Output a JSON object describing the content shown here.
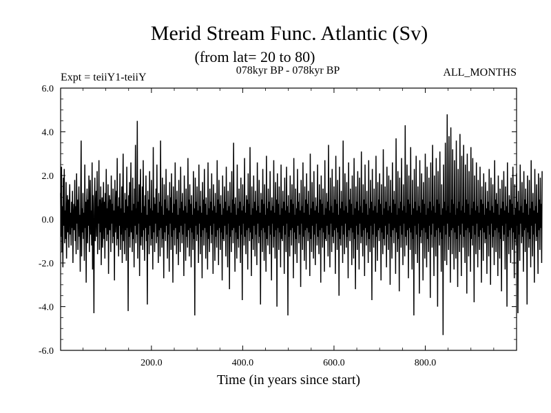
{
  "chart_data": {
    "type": "line",
    "title": "Merid Stream Func. Atlantic (Sv)",
    "subtitle": "(from lat= 20 to 80)",
    "header_left": "Expt = teiiY1-teiiY",
    "header_center": "078kyr BP - 078kyr BP",
    "header_right": "ALL_MONTHS",
    "xlabel": "Time (in years since start)",
    "ylabel": "",
    "xlim": [
      1,
      1000
    ],
    "ylim": [
      -6.0,
      6.0
    ],
    "x_ticks": [
      200,
      400,
      600,
      800
    ],
    "x_tick_labels": [
      "200.0",
      "400.0",
      "600.0",
      "800.0"
    ],
    "y_ticks": [
      -6,
      -4,
      -2,
      0,
      2,
      4,
      6
    ],
    "y_tick_labels": [
      "-6.0",
      "-4.0",
      "-2.0",
      "0.0",
      "2.0",
      "4.0",
      "6.0"
    ],
    "zero_line": true,
    "series": [
      {
        "x_start": 1,
        "x_step": 1,
        "color": "#000000",
        "values": [
          1.2,
          -0.8,
          2.4,
          -1.5,
          0.6,
          -2.2,
          1.9,
          -0.3,
          2.3,
          -1.1,
          0.4,
          -0.9,
          1.7,
          -1.8,
          0.2,
          1.1,
          -0.6,
          0.9,
          -1.3,
          0.5,
          1.6,
          -0.7,
          0.3,
          -1.2,
          0.8,
          -0.4,
          1.3,
          -2.0,
          0.1,
          0.7,
          -0.5,
          1.8,
          -1.0,
          0.6,
          -1.6,
          2.1,
          -0.2,
          0.9,
          -1.4,
          0.4,
          1.5,
          -0.8,
          0.2,
          -2.4,
          1.0,
          3.6,
          -1.7,
          0.5,
          -0.6,
          1.2,
          -0.9,
          0.3,
          -1.9,
          2.5,
          -0.4,
          0.8,
          -2.9,
          0.6,
          1.4,
          -1.1,
          0.9,
          -0.3,
          2.0,
          -1.5,
          0.2,
          1.8,
          -0.7,
          0.4,
          -1.2,
          2.6,
          -2.3,
          1.1,
          -0.5,
          -4.3,
          0.7,
          1.9,
          -1.0,
          0.3,
          1.3,
          -0.8,
          2.2,
          -1.6,
          0.6,
          -0.2,
          2.7,
          -1.4,
          0.9,
          -0.6,
          1.5,
          -2.1,
          0.4,
          1.0,
          -1.3,
          0.2,
          1.7,
          -0.9,
          0.8,
          -1.8,
          1.2,
          -0.4,
          2.3,
          -1.0,
          0.5,
          -0.7,
          1.6,
          -2.5,
          0.3,
          1.1,
          -0.5,
          0.9,
          -1.5,
          2.0,
          -0.2,
          0.7,
          -1.1,
          1.4,
          -0.8,
          0.4,
          -2.8,
          1.8,
          -0.6,
          0.2,
          1.3,
          -1.2,
          2.8,
          -0.9,
          0.6,
          -1.7,
          1.0,
          -0.3,
          2.1,
          -1.4,
          0.5,
          -0.7,
          1.5,
          -2.0,
          0.8,
          3.0,
          -1.0,
          0.3,
          -1.6,
          1.2,
          -0.5,
          0.9,
          -1.9,
          2.4,
          -0.4,
          0.6,
          -4.2,
          1.1,
          -0.8,
          1.7,
          -1.3,
          0.2,
          2.6,
          -0.6,
          0.4,
          -1.5,
          1.9,
          -0.9,
          0.7,
          -2.2,
          1.4,
          -0.3,
          3.4,
          -1.1,
          0.5,
          -0.7,
          4.5,
          -1.8,
          0.8,
          -0.2,
          1.6,
          -2.6,
          0.9,
          2.3,
          -1.2,
          0.3,
          -0.8,
          1.5,
          -1.4,
          2.7,
          -0.5,
          0.6,
          -1.9,
          1.1,
          -0.4,
          2.0,
          -1.0,
          0.2,
          -3.9,
          1.3,
          -0.7,
          0.9,
          -1.6,
          2.2,
          -0.3,
          0.5,
          -1.2,
          1.8,
          -0.9,
          0.4,
          -2.3,
          3.3,
          -0.6,
          1.0,
          -1.5,
          0.7,
          -0.2,
          1.4,
          -1.1,
          2.5,
          -0.8,
          0.3,
          -2.0,
          1.2,
          -0.5,
          0.8,
          -1.7,
          3.6,
          -0.4,
          0.6,
          -1.3,
          1.9,
          -0.9,
          0.2,
          -2.7,
          1.6,
          -0.6,
          0.9,
          -1.0,
          2.3,
          -0.3,
          0.5,
          -1.8,
          1.1,
          -0.7,
          0.4,
          -2.4,
          1.7,
          -0.2,
          1.0,
          -1.4,
          2.1,
          -0.8,
          0.3,
          -2.9,
          1.5,
          -0.5,
          0.7,
          -1.2,
          2.6,
          -0.4,
          0.9,
          -1.6,
          1.3,
          -0.9,
          0.2,
          -2.1,
          1.8,
          -0.6,
          0.5,
          -1.5,
          2.4,
          -0.3,
          0.8,
          -1.1,
          1.2,
          -0.7,
          0.4,
          -2.6,
          2.0,
          -0.2,
          0.6,
          -1.9,
          1.4,
          -0.8,
          0.3,
          -1.3,
          2.8,
          -0.5,
          0.9,
          -1.7,
          1.6,
          -0.4,
          0.7,
          -2.2,
          1.1,
          -0.6,
          0.2,
          -1.4,
          2.2,
          -0.9,
          0.5,
          -4.4,
          1.9,
          -0.3,
          0.8,
          -1.0,
          1.5,
          -0.7,
          0.4,
          -2.0,
          2.5,
          -0.2,
          0.6,
          -1.6,
          1.3,
          -0.8,
          0.3,
          -2.7,
          1.7,
          -0.5,
          0.9,
          -1.2,
          2.3,
          -0.4,
          0.7,
          -1.8,
          1.0,
          -0.6,
          0.2,
          -2.3,
          2.6,
          -0.9,
          0.5,
          -1.5,
          1.4,
          -0.3,
          0.8,
          -1.1,
          2.1,
          -0.7,
          0.4,
          -2.5,
          1.6,
          -0.2,
          0.6,
          -1.9,
          1.2,
          -0.8,
          0.3,
          -1.3,
          2.7,
          -0.5,
          0.9,
          -2.1,
          1.8,
          -0.4,
          0.7,
          -1.4,
          1.1,
          -0.6,
          0.2,
          -2.8,
          2.0,
          -0.9,
          0.5,
          -1.0,
          1.5,
          -0.3,
          0.8,
          -1.7,
          2.4,
          -0.7,
          0.4,
          -2.2,
          1.3,
          -0.2,
          0.6,
          -3.2,
          1.7,
          -0.8,
          0.3,
          -1.5,
          2.2,
          -0.5,
          0.9,
          -1.1,
          3.5,
          -0.4,
          0.7,
          -2.4,
          1.0,
          -0.6,
          0.2,
          -1.8,
          2.5,
          -0.9,
          0.5,
          -1.3,
          1.4,
          -0.3,
          0.8,
          -2.0,
          1.9,
          -0.7,
          0.4,
          -3.7,
          1.6,
          -0.2,
          0.6,
          -1.2,
          2.8,
          -0.8,
          0.3,
          -1.6,
          1.1,
          -0.5,
          0.9,
          -2.3,
          2.1,
          -0.4,
          0.7,
          -1.0,
          3.3,
          -0.6,
          0.2,
          -2.6,
          1.5,
          -0.9,
          0.5,
          -1.4,
          2.0,
          -0.3,
          0.8,
          -1.7,
          1.3,
          -0.7,
          0.4,
          -2.1,
          2.6,
          -0.2,
          0.6,
          -1.1,
          1.8,
          -0.8,
          0.3,
          -3.9,
          1.2,
          -0.5,
          0.9,
          -1.5,
          2.3,
          -0.4,
          0.7,
          -1.9,
          1.6,
          -0.6,
          0.2,
          -2.4,
          2.9,
          -0.9,
          0.5,
          -1.2,
          1.4,
          -0.3,
          0.8,
          -1.6,
          2.2,
          -0.7,
          0.4,
          -2.8,
          1.0,
          -0.2,
          0.6,
          -1.3,
          2.7,
          -0.8,
          0.3,
          -1.8,
          1.7,
          -0.5,
          0.9,
          -4.0,
          2.1,
          -0.4,
          0.7,
          -1.4,
          1.5,
          -0.6,
          0.2,
          -2.2,
          2.5,
          -0.9,
          0.5,
          -1.0,
          1.3,
          -0.3,
          0.8,
          -2.5,
          1.9,
          -0.7,
          0.4,
          -1.5,
          2.4,
          -0.2,
          0.6,
          -4.4,
          1.1,
          -0.8,
          0.3,
          -1.7,
          2.0,
          -0.5,
          0.9,
          -1.2,
          1.6,
          -0.4,
          0.7,
          -2.7,
          2.8,
          -0.6,
          0.2,
          -1.6,
          1.4,
          -0.9,
          0.5,
          -2.0,
          2.3,
          -0.3,
          0.8,
          -1.1,
          1.2,
          -0.7,
          0.4,
          -3.1,
          1.8,
          -0.2,
          0.6,
          -1.4,
          2.6,
          -0.8,
          0.3,
          -1.9,
          1.5,
          -0.5,
          0.9,
          -2.3,
          2.1,
          -0.4,
          0.7,
          -1.0,
          1.3,
          -0.6,
          0.2,
          -2.6,
          3.0,
          -0.9,
          0.5,
          -1.5,
          1.7,
          -0.3,
          0.8,
          -1.8,
          2.2,
          -0.7,
          0.4,
          -2.1,
          1.0,
          -0.2,
          0.6,
          -1.2,
          2.5,
          -0.8,
          0.3,
          -1.6,
          1.6,
          -0.5,
          0.9,
          -2.9,
          2.0,
          -0.4,
          0.7,
          -1.3,
          1.4,
          -0.6,
          0.2,
          -2.4,
          2.7,
          -0.9,
          0.5,
          -1.0,
          1.2,
          -0.3,
          0.8,
          -1.7,
          3.4,
          -0.7,
          0.4,
          -2.2,
          1.9,
          -0.2,
          0.6,
          -1.5,
          2.3,
          -0.8,
          0.3,
          -1.1,
          1.5,
          -0.5,
          0.9,
          -2.5,
          2.9,
          -0.4,
          0.7,
          -1.4,
          1.8,
          -0.6,
          0.2,
          -3.5,
          2.4,
          -0.9,
          0.5,
          -1.2,
          1.3,
          -0.3,
          0.8,
          -2.0,
          3.6,
          -0.7,
          0.4,
          -1.6,
          2.1,
          -0.2,
          0.6,
          -1.3,
          1.7,
          -0.8,
          0.3,
          -2.7,
          2.6,
          -0.5,
          0.9,
          -1.0,
          1.4,
          -0.4,
          0.7,
          -2.1,
          2.0,
          -0.6,
          0.2,
          -1.8,
          2.8,
          -0.9,
          0.5,
          -3.2,
          1.5,
          -0.3,
          0.8,
          -1.4,
          2.2,
          -0.7,
          0.4,
          -2.3,
          1.9,
          -0.2,
          0.6,
          -1.1,
          3.1,
          -0.8,
          0.3,
          -1.7,
          1.6,
          -0.5,
          0.9,
          -2.6,
          2.5,
          -0.4,
          0.7,
          -1.2,
          1.3,
          -0.6,
          0.2,
          -2.0,
          2.7,
          -0.9,
          0.5,
          -1.5,
          1.8,
          -0.3,
          0.8,
          -3.7,
          2.3,
          -0.7,
          0.4,
          -1.3,
          1.4,
          -0.2,
          0.6,
          -2.4,
          2.9,
          -0.8,
          0.3,
          -1.9,
          1.7,
          -0.5,
          0.9,
          -1.0,
          2.1,
          -0.4,
          0.7,
          -2.8,
          1.6,
          -0.6,
          0.2,
          -1.6,
          3.2,
          -0.9,
          0.5,
          -1.2,
          1.5,
          -0.3,
          0.8,
          -2.2,
          2.4,
          -0.7,
          0.4,
          -1.4,
          2.0,
          -0.2,
          0.6,
          -3.0,
          1.8,
          -0.8,
          0.3,
          -1.8,
          2.6,
          -0.5,
          0.9,
          -1.1,
          1.3,
          -0.4,
          0.7,
          -2.5,
          3.7,
          -0.6,
          0.2,
          -1.5,
          2.2,
          -0.9,
          0.5,
          -3.3,
          1.9,
          -0.3,
          0.8,
          -1.3,
          2.8,
          -0.7,
          0.4,
          -2.1,
          1.6,
          -0.2,
          0.6,
          -1.7,
          4.3,
          -0.8,
          0.3,
          -1.2,
          2.5,
          -0.5,
          0.9,
          -2.7,
          2.0,
          -0.4,
          0.7,
          -1.4,
          3.3,
          -0.6,
          0.2,
          -2.3,
          1.8,
          -0.9,
          0.5,
          -4.4,
          2.3,
          -0.3,
          0.8,
          -1.6,
          2.9,
          -0.7,
          0.4,
          -2.0,
          1.5,
          -0.2,
          0.6,
          -3.4,
          2.7,
          -0.8,
          0.3,
          -1.1,
          2.1,
          -0.5,
          0.9,
          -2.8,
          1.7,
          -0.4,
          0.7,
          -1.8,
          3.0,
          -0.6,
          0.2,
          -2.2,
          2.4,
          -0.9,
          0.5,
          -1.5,
          1.9,
          -0.3,
          0.8,
          -3.6,
          2.6,
          -0.7,
          0.4,
          -1.3,
          3.4,
          -0.2,
          0.6,
          -2.6,
          2.0,
          -0.8,
          0.3,
          -1.7,
          2.8,
          -0.5,
          0.9,
          -4.0,
          2.2,
          -0.4,
          0.7,
          -1.2,
          3.1,
          -0.6,
          0.2,
          -2.4,
          1.6,
          -0.9,
          0.5,
          -5.3,
          2.5,
          -0.3,
          0.8,
          -1.9,
          3.5,
          -0.7,
          0.4,
          -2.1,
          4.8,
          -0.2,
          0.6,
          -1.4,
          3.8,
          -0.8,
          0.3,
          -2.9,
          4.2,
          -0.5,
          0.9,
          -1.6,
          3.2,
          -0.4,
          0.7,
          -2.3,
          2.7,
          -0.6,
          0.2,
          -1.8,
          3.6,
          -0.9,
          0.5,
          -3.1,
          2.3,
          -0.3,
          0.8,
          -1.5,
          3.9,
          -0.7,
          0.4,
          -2.6,
          2.9,
          -0.2,
          0.6,
          -1.3,
          3.4,
          -0.8,
          0.3,
          -2.0,
          2.5,
          -0.5,
          0.9,
          -3.4,
          3.0,
          -0.4,
          0.7,
          -1.7,
          2.2,
          -0.6,
          0.2,
          -2.4,
          3.3,
          -0.9,
          0.5,
          -1.2,
          2.8,
          -0.3,
          0.8,
          -3.8,
          2.0,
          -0.7,
          0.4,
          -1.6,
          2.6,
          -0.2,
          0.6,
          -2.2,
          1.8,
          -0.8,
          0.3,
          -1.4,
          2.4,
          -0.5,
          0.9,
          -2.9,
          1.5,
          -0.4,
          0.7,
          -1.9,
          2.1,
          -0.6,
          0.2,
          -1.1,
          1.7,
          -0.9,
          0.5,
          -2.5,
          1.3,
          -0.3,
          0.8,
          -1.7,
          2.3,
          -0.7,
          0.4,
          -3.0,
          1.9,
          -0.2,
          0.6,
          -1.3,
          1.6,
          -0.8,
          0.3,
          -2.1,
          2.7,
          -0.5,
          0.9,
          -1.5,
          1.2,
          -0.4,
          0.7,
          -2.6,
          2.0,
          -0.6,
          0.2,
          -1.8,
          1.4,
          -0.9,
          0.5,
          -3.3,
          1.8,
          -0.3,
          0.8,
          -1.0,
          2.2,
          -0.7,
          0.4,
          -2.3,
          1.5,
          -0.2,
          0.6,
          -4.0,
          2.6,
          -0.8,
          0.3,
          -1.6,
          1.1,
          -0.5,
          0.9,
          -2.0,
          1.9,
          -0.4,
          0.7,
          -1.4,
          2.4,
          -0.6,
          0.2,
          -2.7,
          1.6,
          -0.9,
          0.5,
          -1.2,
          2.1,
          -0.3,
          0.8,
          -4.3,
          1.3,
          -0.7,
          0.4,
          -1.9,
          2.5,
          -0.2,
          0.6,
          -1.1,
          1.7,
          -0.8,
          0.3,
          -2.4,
          2.2,
          -0.5,
          0.9,
          -1.5,
          1.4,
          -0.4,
          0.7,
          -3.9,
          2.0,
          -0.6,
          0.2,
          -1.3,
          1.8,
          -0.9,
          0.5,
          -2.2,
          2.7,
          -0.3,
          0.8,
          -1.7,
          1.2,
          -0.7,
          0.4,
          -2.9,
          2.3,
          -0.2,
          0.6,
          -1.0,
          1.6,
          -0.8,
          0.3,
          -2.5,
          2.1,
          -0.5,
          0.9,
          -1.4,
          1.9,
          -0.4,
          0.7,
          -2.0,
          2.2
        ]
      }
    ]
  }
}
